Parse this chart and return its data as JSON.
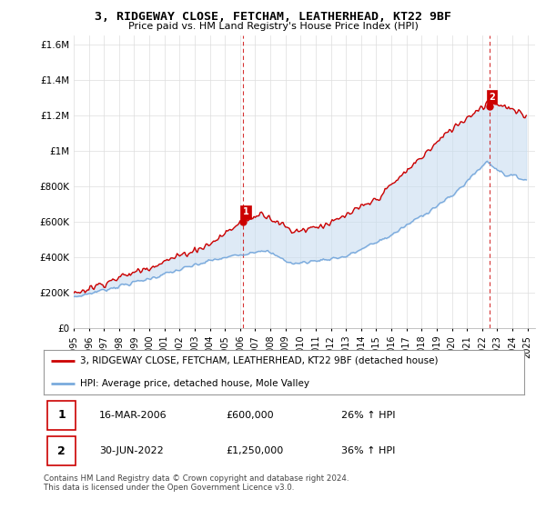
{
  "title": "3, RIDGEWAY CLOSE, FETCHAM, LEATHERHEAD, KT22 9BF",
  "subtitle": "Price paid vs. HM Land Registry's House Price Index (HPI)",
  "ylim": [
    0,
    1650000
  ],
  "yticks": [
    0,
    200000,
    400000,
    600000,
    800000,
    1000000,
    1200000,
    1400000,
    1600000
  ],
  "ytick_labels": [
    "£0",
    "£200K",
    "£400K",
    "£600K",
    "£800K",
    "£1M",
    "£1.2M",
    "£1.4M",
    "£1.6M"
  ],
  "line1_color": "#cc0000",
  "line2_color": "#7aaadd",
  "fill_color": "#c8ddf0",
  "legend1": "3, RIDGEWAY CLOSE, FETCHAM, LEATHERHEAD, KT22 9BF (detached house)",
  "legend2": "HPI: Average price, detached house, Mole Valley",
  "footer": "Contains HM Land Registry data © Crown copyright and database right 2024.\nThis data is licensed under the Open Government Licence v3.0.",
  "table_rows": [
    {
      "num": "1",
      "date": "16-MAR-2006",
      "price": "£600,000",
      "pct": "26% ↑ HPI"
    },
    {
      "num": "2",
      "date": "30-JUN-2022",
      "price": "£1,250,000",
      "pct": "36% ↑ HPI"
    }
  ],
  "t1_year": 2006.21,
  "t1_price": 600000,
  "t2_year": 2022.5,
  "t2_price": 1250000,
  "background_color": "#ffffff",
  "grid_color": "#dddddd"
}
